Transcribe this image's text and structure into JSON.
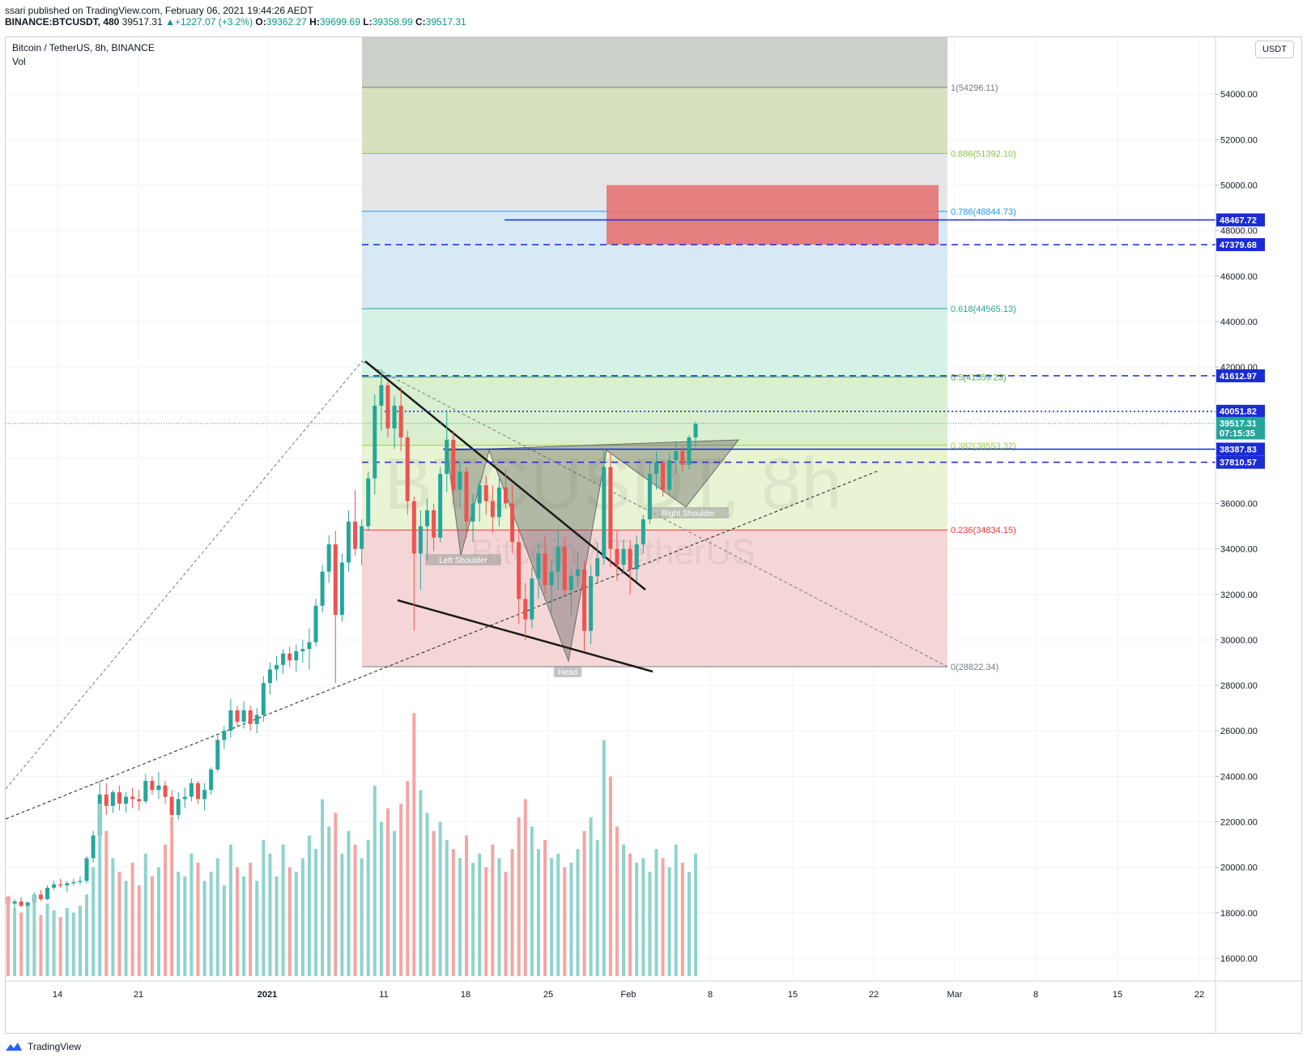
{
  "header": {
    "publisher": "ssari published on TradingView.com, February 06, 2021 19:44:26 AEDT",
    "symbol_line": "BINANCE:BTCUSDT, 480",
    "last": "39517.31",
    "change": "+1227.07 (+3.2%)",
    "o_label": "O:",
    "o": "39362.27",
    "h_label": "H:",
    "h": "39699.69",
    "l_label": "L:",
    "l": "39358.99",
    "c_label": "C:",
    "c": "39517.31"
  },
  "legend": {
    "title": "Bitcoin / TetherUS, 8h, BINANCE",
    "vol": "Vol"
  },
  "watermark": {
    "main": "BTCUSDT, 8h",
    "sub": "Bitcoin / TetherUS"
  },
  "currency_button": "USDT",
  "footer": {
    "brand": "TradingView"
  },
  "colors": {
    "up": "#26a69a",
    "down": "#ef5350",
    "line_blue": "#2962ff",
    "zone_red": "#e57373"
  },
  "chart_data": {
    "type": "candlestick",
    "y_axis": {
      "min": 15000,
      "max": 56500,
      "ticks": [
        16000,
        18000,
        20000,
        22000,
        24000,
        26000,
        28000,
        30000,
        32000,
        34000,
        36000,
        38000,
        40000,
        42000,
        44000,
        46000,
        48000,
        50000,
        52000,
        54000
      ]
    },
    "x_axis": {
      "ticks": [
        "14",
        "21",
        "2021",
        "11",
        "18",
        "25",
        "Feb",
        "8",
        "15",
        "22",
        "Mar",
        "8",
        "15",
        "22"
      ]
    },
    "price_labels": [
      {
        "value": "48467.72",
        "price": 48467.72,
        "style": "solid"
      },
      {
        "value": "47379.68",
        "price": 47379.68,
        "style": "dashed"
      },
      {
        "value": "41612.97",
        "price": 41612.97,
        "style": "dashed"
      },
      {
        "value": "40051.82",
        "price": 40051.82,
        "style": "dotted"
      },
      {
        "value": "39517.31",
        "price": 39517.31,
        "style": "last"
      },
      {
        "value": "07:15:35",
        "price": 39100,
        "style": "countdown"
      },
      {
        "value": "38387.83",
        "price": 38387.83,
        "style": "solid"
      },
      {
        "value": "37810.57",
        "price": 37810.57,
        "style": "dashed"
      }
    ],
    "fib_levels": [
      {
        "label": "1(54296.11)",
        "price": 54296.11,
        "color": "#787b86"
      },
      {
        "label": "0.886(51392.10)",
        "price": 51392.1,
        "color": "#8bc34a"
      },
      {
        "label": "0.786(48844.73)",
        "price": 48844.73,
        "color": "#2196f3"
      },
      {
        "label": "0.618(44565.13)",
        "price": 44565.13,
        "color": "#26a69a"
      },
      {
        "label": "0.5(41559.23)",
        "price": 41559.23,
        "color": "#4caf50"
      },
      {
        "label": "0.382(38553.32)",
        "price": 38553.32,
        "color": "#9acd32"
      },
      {
        "label": "0.236(34834.15)",
        "price": 34834.15,
        "color": "#e53935"
      },
      {
        "label": "0(28822.34)",
        "price": 28822.34,
        "color": "#787b86"
      }
    ],
    "pattern_labels": [
      "Left Shoulder",
      "Head",
      "Right Shoulder"
    ],
    "candles": [
      [
        18700,
        18750,
        18300,
        18400
      ],
      [
        18400,
        18600,
        18100,
        18500
      ],
      [
        18500,
        18700,
        18250,
        18300
      ],
      [
        18300,
        18500,
        18000,
        18450
      ],
      [
        18450,
        18900,
        18350,
        18800
      ],
      [
        18800,
        19000,
        18500,
        18600
      ],
      [
        18600,
        19200,
        18550,
        19100
      ],
      [
        19100,
        19400,
        19000,
        19250
      ],
      [
        19250,
        19500,
        19100,
        19200
      ],
      [
        19200,
        19400,
        18900,
        19300
      ],
      [
        19300,
        19500,
        19200,
        19350
      ],
      [
        19350,
        19600,
        19250,
        19400
      ],
      [
        19400,
        20500,
        19300,
        20400
      ],
      [
        20400,
        21600,
        20200,
        21400
      ],
      [
        21400,
        23800,
        21100,
        23200
      ],
      [
        23200,
        23700,
        22300,
        22700
      ],
      [
        22700,
        23400,
        22400,
        23300
      ],
      [
        23300,
        23600,
        22500,
        22800
      ],
      [
        22800,
        23300,
        22400,
        23100
      ],
      [
        23100,
        23500,
        22600,
        23000
      ],
      [
        23000,
        23400,
        22500,
        22900
      ],
      [
        22900,
        24100,
        22800,
        23800
      ],
      [
        23800,
        24000,
        23200,
        23400
      ],
      [
        23400,
        24200,
        23000,
        23600
      ],
      [
        23600,
        23800,
        22800,
        23100
      ],
      [
        23100,
        23400,
        21800,
        22300
      ],
      [
        22300,
        23300,
        22100,
        23000
      ],
      [
        23000,
        23500,
        22600,
        23100
      ],
      [
        23100,
        23900,
        22900,
        23700
      ],
      [
        23700,
        23800,
        22800,
        23000
      ],
      [
        23000,
        23700,
        22500,
        23400
      ],
      [
        23400,
        24400,
        23200,
        24300
      ],
      [
        24300,
        25800,
        24200,
        25600
      ],
      [
        25600,
        26200,
        25200,
        26000
      ],
      [
        26000,
        27400,
        25700,
        26900
      ],
      [
        26900,
        27100,
        26200,
        26400
      ],
      [
        26400,
        27300,
        26100,
        26900
      ],
      [
        26900,
        27100,
        26000,
        26300
      ],
      [
        26300,
        27000,
        25900,
        26700
      ],
      [
        26700,
        28400,
        26400,
        28100
      ],
      [
        28100,
        29000,
        27600,
        28700
      ],
      [
        28700,
        29300,
        28200,
        28900
      ],
      [
        28900,
        29600,
        28500,
        29400
      ],
      [
        29400,
        29700,
        28800,
        29100
      ],
      [
        29100,
        29800,
        28600,
        29500
      ],
      [
        29500,
        30000,
        29000,
        29600
      ],
      [
        29600,
        30500,
        28700,
        29900
      ],
      [
        29900,
        31800,
        29700,
        31500
      ],
      [
        31500,
        33300,
        31200,
        33000
      ],
      [
        33000,
        34600,
        32500,
        34200
      ],
      [
        34200,
        34800,
        28100,
        31100
      ],
      [
        31100,
        33800,
        30800,
        33400
      ],
      [
        33400,
        35700,
        33000,
        35200
      ],
      [
        35200,
        36600,
        33700,
        34000
      ],
      [
        34000,
        35300,
        33300,
        35000
      ],
      [
        35000,
        37400,
        34800,
        37100
      ],
      [
        37100,
        40800,
        36400,
        40300
      ],
      [
        40300,
        41900,
        39200,
        41200
      ],
      [
        41200,
        41400,
        38900,
        39300
      ],
      [
        39300,
        40700,
        38400,
        40300
      ],
      [
        40300,
        41100,
        38300,
        38900
      ],
      [
        38900,
        39200,
        35500,
        36100
      ],
      [
        36100,
        36300,
        30400,
        33800
      ],
      [
        33800,
        35700,
        32200,
        35000
      ],
      [
        35000,
        36200,
        33500,
        35700
      ],
      [
        35700,
        36000,
        33900,
        34500
      ],
      [
        34500,
        37600,
        34300,
        37300
      ],
      [
        37300,
        40100,
        36500,
        38800
      ],
      [
        38800,
        39200,
        36000,
        36600
      ],
      [
        36600,
        37800,
        35800,
        37400
      ],
      [
        37400,
        37600,
        34500,
        35200
      ],
      [
        35200,
        36400,
        34300,
        36000
      ],
      [
        36000,
        37000,
        35200,
        36800
      ],
      [
        36800,
        37200,
        35500,
        36100
      ],
      [
        36100,
        36800,
        34700,
        35400
      ],
      [
        35400,
        37100,
        35000,
        36700
      ],
      [
        36700,
        37500,
        35800,
        36000
      ],
      [
        36000,
        36800,
        33800,
        34300
      ],
      [
        34300,
        34900,
        30700,
        31800
      ],
      [
        31800,
        32500,
        30000,
        30900
      ],
      [
        30900,
        33200,
        30500,
        32700
      ],
      [
        32700,
        34300,
        31800,
        33800
      ],
      [
        33800,
        34600,
        32000,
        32400
      ],
      [
        32400,
        33500,
        31200,
        33000
      ],
      [
        33000,
        34800,
        32200,
        34100
      ],
      [
        34100,
        34500,
        32000,
        32200
      ],
      [
        32200,
        33100,
        31100,
        32800
      ],
      [
        32800,
        33900,
        32300,
        33100
      ],
      [
        33100,
        33500,
        29500,
        30400
      ],
      [
        30400,
        33300,
        29800,
        32800
      ],
      [
        32800,
        34300,
        32500,
        33600
      ],
      [
        33600,
        38400,
        33300,
        37600
      ],
      [
        37600,
        38200,
        33200,
        34000
      ],
      [
        34000,
        34800,
        32600,
        33300
      ],
      [
        33300,
        34400,
        32900,
        34000
      ],
      [
        34000,
        34400,
        32000,
        33100
      ],
      [
        33100,
        34600,
        32600,
        34200
      ],
      [
        34200,
        35500,
        33800,
        35300
      ],
      [
        35300,
        37800,
        35100,
        37300
      ],
      [
        37300,
        38300,
        36600,
        37800
      ],
      [
        37800,
        37900,
        36300,
        36600
      ],
      [
        36600,
        38200,
        36400,
        37900
      ],
      [
        37900,
        38700,
        37300,
        38300
      ],
      [
        38300,
        38500,
        37400,
        37700
      ],
      [
        37700,
        39000,
        37500,
        38900
      ],
      [
        38900,
        39600,
        38500,
        39500
      ]
    ],
    "volumes": [
      1.75,
      1.5,
      1.4,
      1.55,
      1.8,
      1.35,
      1.6,
      1.45,
      1.3,
      1.5,
      1.4,
      1.55,
      1.8,
      2.4,
      3.8,
      3.2,
      2.6,
      2.3,
      2.1,
      2.5,
      2.0,
      2.7,
      2.2,
      2.4,
      2.9,
      3.5,
      2.3,
      2.2,
      2.7,
      2.5,
      2.1,
      2.3,
      2.6,
      2.0,
      2.9,
      2.4,
      2.2,
      2.5,
      2.1,
      3.0,
      2.7,
      2.2,
      2.9,
      2.4,
      2.3,
      2.6,
      3.1,
      2.8,
      3.9,
      3.3,
      3.6,
      2.7,
      3.2,
      2.9,
      2.6,
      3.0,
      4.2,
      3.4,
      3.7,
      3.2,
      3.8,
      4.3,
      5.8,
      4.1,
      3.6,
      3.2,
      3.4,
      3.0,
      2.8,
      2.6,
      3.1,
      2.5,
      2.7,
      2.4,
      2.9,
      2.6,
      2.3,
      2.8,
      3.5,
      3.9,
      3.3,
      2.8,
      3.0,
      2.6,
      2.7,
      2.4,
      2.5,
      2.8,
      3.2,
      3.5,
      3.0,
      5.2,
      4.4,
      3.3,
      2.9,
      2.7,
      2.5,
      2.6,
      2.3,
      2.8,
      2.6,
      2.4,
      2.9,
      2.5,
      2.3,
      2.7
    ]
  }
}
